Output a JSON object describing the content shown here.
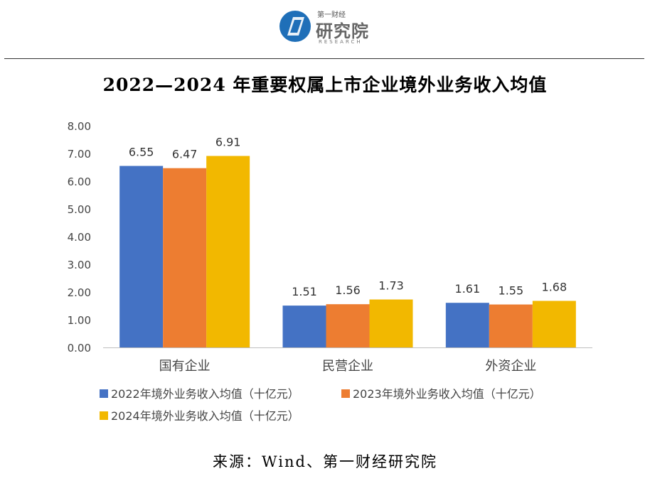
{
  "header": {
    "logo_small": "第一财经",
    "logo_big": "研究院",
    "logo_sub": "RESEARCH"
  },
  "source_text": "来源：Wind、第一财经研究院",
  "colors": {
    "s2022": "#4472C4",
    "s2023": "#ED7D31",
    "s2024": "#F2B800"
  },
  "chart_data": {
    "type": "bar",
    "title": "2022—2024 年重要权属上市企业境外业务收入均值",
    "xlabel": "",
    "ylabel": "",
    "categories": [
      "国有企业",
      "民营企业",
      "外资企业"
    ],
    "series": [
      {
        "name": "2022年境外业务收入均值（十亿元）",
        "values": [
          6.55,
          1.51,
          1.61
        ]
      },
      {
        "name": "2023年境外业务收入均值（十亿元）",
        "values": [
          6.47,
          1.56,
          1.55
        ]
      },
      {
        "name": "2024年境外业务收入均值（十亿元）",
        "values": [
          6.91,
          1.73,
          1.68
        ]
      }
    ],
    "ylim": [
      0,
      8
    ],
    "yticks": [
      "0.00",
      "1.00",
      "2.00",
      "3.00",
      "4.00",
      "5.00",
      "6.00",
      "7.00",
      "8.00"
    ],
    "grid": false,
    "legend_position": "bottom-left"
  }
}
